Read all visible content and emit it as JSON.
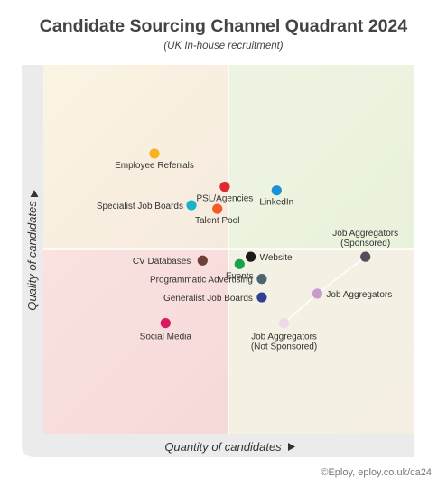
{
  "title": "Candidate Sourcing Channel Quadrant 2024",
  "subtitle": "(UK In-house recruitment)",
  "credit": "©Eploy, eploy.co.uk/ca24",
  "chart_data": {
    "type": "scatter",
    "xlabel": "Quantity of candidates",
    "ylabel": "Quality of candidates",
    "xlim": [
      0,
      100
    ],
    "ylim": [
      0,
      100
    ],
    "grid": false,
    "quadrant_colors": {
      "top_left": "#fbf3e4",
      "top_right": "#ecf3df",
      "bottom_left": "#f8dede",
      "bottom_right": "#f4f0e4"
    },
    "points": [
      {
        "label": "Employee Referrals",
        "x": 30,
        "y": 76,
        "color": "#f5b324"
      },
      {
        "label": "PSL/Agencies",
        "x": 49,
        "y": 67,
        "color": "#e0282e"
      },
      {
        "label": "LinkedIn",
        "x": 63,
        "y": 66,
        "color": "#1e8fd6"
      },
      {
        "label": "Specialist Job Boards",
        "x": 40,
        "y": 62,
        "color": "#1bb3c9"
      },
      {
        "label": "Talent Pool",
        "x": 47,
        "y": 61,
        "color": "#f25a2a"
      },
      {
        "label": "Job Aggregators\n(Sponsored)",
        "x": 87,
        "y": 48,
        "color": "#5a4a5e"
      },
      {
        "label": "CV Databases",
        "x": 43,
        "y": 47,
        "color": "#6e4137"
      },
      {
        "label": "Website",
        "x": 56,
        "y": 48,
        "color": "#1a1a1a"
      },
      {
        "label": "Events",
        "x": 53,
        "y": 46,
        "color": "#17a34a"
      },
      {
        "label": "Programmatic Advertising",
        "x": 59,
        "y": 42,
        "color": "#4e6470"
      },
      {
        "label": "Job Aggregators",
        "x": 74,
        "y": 38,
        "color": "#c79ad0"
      },
      {
        "label": "Generalist Job Boards",
        "x": 59,
        "y": 37,
        "color": "#2e3f94"
      },
      {
        "label": "Social Media",
        "x": 33,
        "y": 30,
        "color": "#d81b60"
      },
      {
        "label": "Job Aggregators\n(Not Sponsored)",
        "x": 65,
        "y": 30,
        "color": "#ecd9ec"
      }
    ],
    "connector": {
      "points": [
        13,
        10,
        5
      ],
      "color": "#ffffff"
    }
  }
}
